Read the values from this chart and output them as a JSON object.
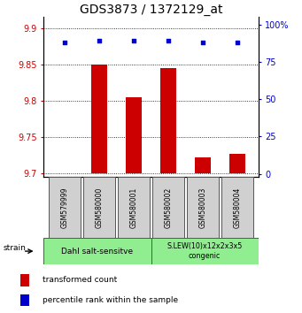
{
  "title": "GDS3873 / 1372129_at",
  "samples": [
    "GSM579999",
    "GSM580000",
    "GSM580001",
    "GSM580002",
    "GSM580003",
    "GSM580004"
  ],
  "bar_values": [
    9.7,
    9.85,
    9.805,
    9.845,
    9.722,
    9.727
  ],
  "bar_base": 9.7,
  "percentile_values": [
    88,
    89,
    89,
    89,
    88,
    88
  ],
  "ylim_left": [
    9.695,
    9.915
  ],
  "ylim_right": [
    -2,
    105
  ],
  "yticks_left": [
    9.7,
    9.75,
    9.8,
    9.85,
    9.9
  ],
  "yticks_right": [
    0,
    25,
    50,
    75,
    100
  ],
  "ytick_labels_left": [
    "9.7",
    "9.75",
    "9.8",
    "9.85",
    "9.9"
  ],
  "ytick_labels_right": [
    "0",
    "25",
    "50",
    "75",
    "100%"
  ],
  "bar_color": "#cc0000",
  "percentile_color": "#0000cc",
  "group1_label": "Dahl salt-sensitve",
  "group2_label": "S.LEW(10)x12x2x3x5\ncongenic",
  "group_color": "#90ee90",
  "sample_box_color": "#d0d0d0",
  "strain_label": "strain",
  "legend_bar_label": "transformed count",
  "legend_pct_label": "percentile rank within the sample",
  "title_fontsize": 10,
  "tick_fontsize": 7,
  "label_fontsize": 7
}
